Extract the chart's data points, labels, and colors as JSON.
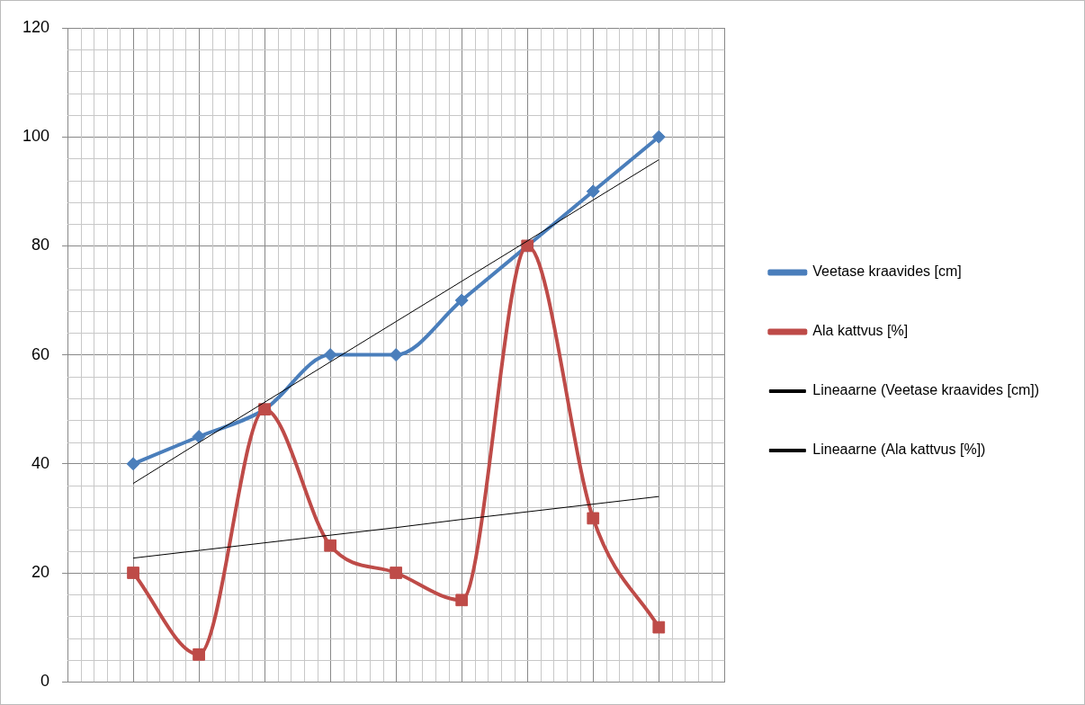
{
  "chart_data": {
    "type": "line",
    "categories": [
      null,
      null,
      null,
      null,
      null,
      null,
      null,
      null,
      null
    ],
    "series": [
      {
        "name": "Veetase kraavides [cm]",
        "color": "#4a7ebb",
        "marker": "diamond",
        "values": [
          40,
          45,
          50,
          60,
          60,
          70,
          80,
          90,
          100
        ]
      },
      {
        "name": "Ala kattvus [%]",
        "color": "#be4b48",
        "marker": "square",
        "values": [
          20,
          5,
          50,
          25,
          20,
          15,
          80,
          30,
          10
        ]
      },
      {
        "name": "Lineaarne (Veetase kraavides [cm])",
        "color": "#000000",
        "marker": "none",
        "values": [
          36.4,
          43.9,
          51.3,
          58.7,
          66.1,
          73.5,
          80.9,
          88.4,
          95.8
        ]
      },
      {
        "name": "Lineaarne (Ala kattvus [%])",
        "color": "#000000",
        "marker": "none",
        "values": [
          22.7,
          24.1,
          25.5,
          26.9,
          28.3,
          29.8,
          31.2,
          32.6,
          34.0
        ]
      }
    ],
    "ylim": [
      0,
      120
    ],
    "yticks": [
      0,
      20,
      40,
      60,
      80,
      100,
      120
    ],
    "grid": true,
    "legend": "right",
    "tick_labels": "y"
  }
}
